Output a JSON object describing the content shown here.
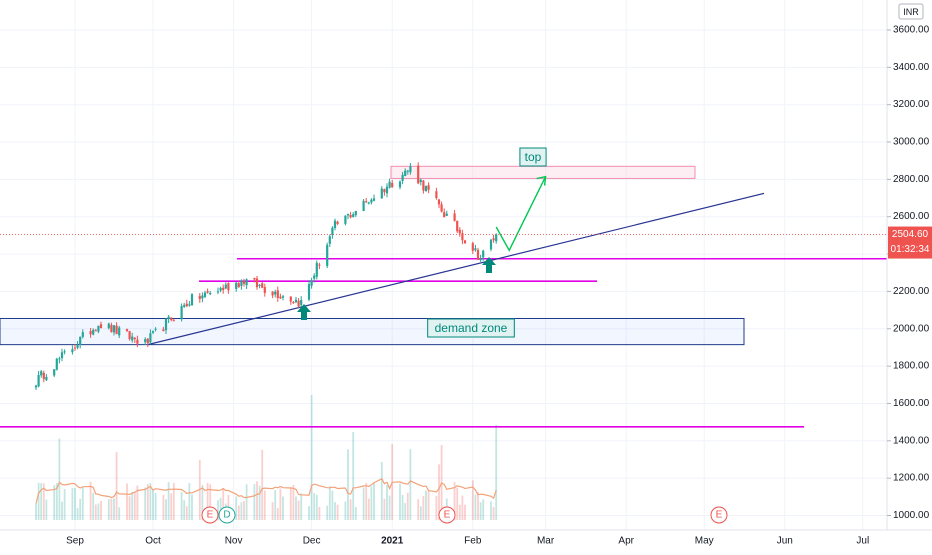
{
  "currency": "INR",
  "price_label": "2504.60",
  "countdown": "01:32:34",
  "annotations": {
    "top": "top",
    "demand_zone": "demand  zone"
  },
  "event_markers": [
    "E",
    "D",
    "E",
    "E"
  ],
  "colors": {
    "up": "#26a69a",
    "down": "#ef5350",
    "trendline": "#283593",
    "support": "#e100e8",
    "arrow": "#00897b",
    "projection": "#00c853",
    "demand_zone_border": "#1e3a8a",
    "top_zone_border": "#f48fb1",
    "volume_ma": "#f2a37a",
    "price_badge": "#ef5350"
  },
  "chart_data": {
    "type": "candlestick",
    "title": "",
    "xlabel": "",
    "ylabel": "",
    "ylim": [
      900,
      3750
    ],
    "y_ticks": [
      1000,
      1200,
      1400,
      1600,
      1800,
      2000,
      2200,
      2400,
      2600,
      2800,
      3000,
      3200,
      3400,
      3600
    ],
    "y_tick_labels": [
      "1000.00",
      "1200.00",
      "1400.00",
      "1600.00",
      "1800.00",
      "2000.00",
      "2200.00",
      "2400.00",
      "2600.00",
      "2800.00",
      "3000.00",
      "3200.00",
      "3400.00",
      "3600.00"
    ],
    "x_ticks": [
      "Sep",
      "Oct",
      "Nov",
      "Dec",
      "2021",
      "Feb",
      "Mar",
      "Apr",
      "May",
      "Jun",
      "Jul"
    ],
    "last_price": 2504.6,
    "price_range": {
      "start": "2020-08-17",
      "end": "2021-02-10",
      "low": 1720,
      "high": 2860
    },
    "swing_points": [
      {
        "date": "2020-08-17",
        "value": 1720
      },
      {
        "date": "2020-09-10",
        "value": 2030
      },
      {
        "date": "2020-09-28",
        "value": 1920
      },
      {
        "date": "2020-10-15",
        "value": 2150
      },
      {
        "date": "2020-11-05",
        "value": 2260
      },
      {
        "date": "2020-11-27",
        "value": 2140
      },
      {
        "date": "2020-12-10",
        "value": 2550
      },
      {
        "date": "2021-01-08",
        "value": 2860
      },
      {
        "date": "2021-01-22",
        "value": 2600
      },
      {
        "date": "2021-02-04",
        "value": 2380
      },
      {
        "date": "2021-02-10",
        "value": 2504.6
      }
    ],
    "levels": {
      "top_zone": [
        2805,
        2870
      ],
      "demand_zone": [
        1915,
        2055
      ],
      "support_lines": [
        2375,
        2255,
        1475
      ]
    },
    "trendline": {
      "from": {
        "date": "2020-09-29",
        "value": 1915
      },
      "to": {
        "date": "2021-05-24",
        "value": 2725
      }
    },
    "projection": [
      {
        "date": "2021-02-15",
        "value": 2420
      },
      {
        "date": "2021-03-01",
        "value": 2815
      }
    ],
    "volume_scale": "relative"
  }
}
